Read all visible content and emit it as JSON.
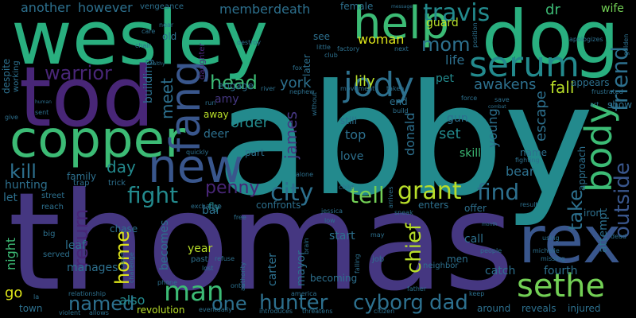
{
  "palette": {
    "background": "#000000",
    "yellow": "#dce319",
    "lime": "#b8de29",
    "light_green": "#73d055",
    "green": "#3cbb75",
    "green_teal": "#29af7f",
    "teal": "#20a387",
    "teal_blue": "#238a8d",
    "blue": "#2d708e",
    "slate": "#39568c",
    "indigo": "#453781",
    "purple": "#482677",
    "dark_purple": "#440154"
  },
  "words": [
    "abby",
    "thomas",
    "wesley",
    "dog",
    "tod",
    "copper",
    "rex",
    "new",
    "fang",
    "help",
    "jody",
    "serum",
    "body",
    "sethe",
    "city",
    "grant",
    "fight",
    "penny",
    "outside",
    "friend",
    "travis",
    "tell",
    "mom",
    "find",
    "take",
    "man",
    "hunter",
    "cyborg",
    "dad",
    "return",
    "chief",
    "named",
    "one",
    "home",
    "warrior",
    "another",
    "however",
    "member",
    "death",
    "head",
    "kill",
    "day",
    "also",
    "order",
    "james",
    "york",
    "meet",
    "lily",
    "woman",
    "fall",
    "dr",
    "life",
    "awakens",
    "pet",
    "set",
    "donald",
    "top",
    "love",
    "skill",
    "bear",
    "young",
    "escape",
    "gun",
    "go",
    "night",
    "hunting",
    "let",
    "family",
    "deer",
    "away",
    "amy",
    "bar",
    "year",
    "becomes",
    "carter",
    "mayor",
    "start",
    "call",
    "catch",
    "fourth",
    "reveals",
    "injured",
    "revolution",
    "attempt",
    "approach",
    "appears",
    "show",
    "wife",
    "guard",
    "female",
    "vengeance",
    "leaf",
    "manages",
    "building",
    "engage",
    "part",
    "fly",
    "street",
    "confronts",
    "enters",
    "offer",
    "iron",
    "around",
    "still",
    "end",
    "later",
    "see",
    "daughter",
    "old",
    "chase",
    "trap",
    "trick",
    "men",
    "becoming",
    "despite",
    "working",
    "reach",
    "big",
    "town",
    "relationship",
    "served",
    "past",
    "refuse",
    "america",
    "falling",
    "neighbor",
    "job",
    "eventually",
    "introduces",
    "threatens",
    "citizen",
    "father",
    "keep",
    "fox",
    "river",
    "nephew",
    "taken",
    "movement",
    "build",
    "destroy",
    "little",
    "factory",
    "club",
    "next",
    "message",
    "apologizes",
    "position",
    "golden",
    "force",
    "save",
    "frustrated",
    "art",
    "combat",
    "fighting",
    "result",
    "using",
    "month",
    "people",
    "michelle",
    "missing",
    "dead",
    "sneak",
    "brain",
    "jessica",
    "free",
    "may",
    "low",
    "arrives",
    "child",
    "alone",
    "exchange",
    "authority",
    "onto",
    "phone",
    "sent",
    "give",
    "human",
    "near",
    "care",
    "chair",
    "wealthy",
    "run",
    "la",
    "allows",
    "violent",
    "challenge",
    "support",
    "lost",
    "without",
    "quickly",
    "name"
  ]
}
